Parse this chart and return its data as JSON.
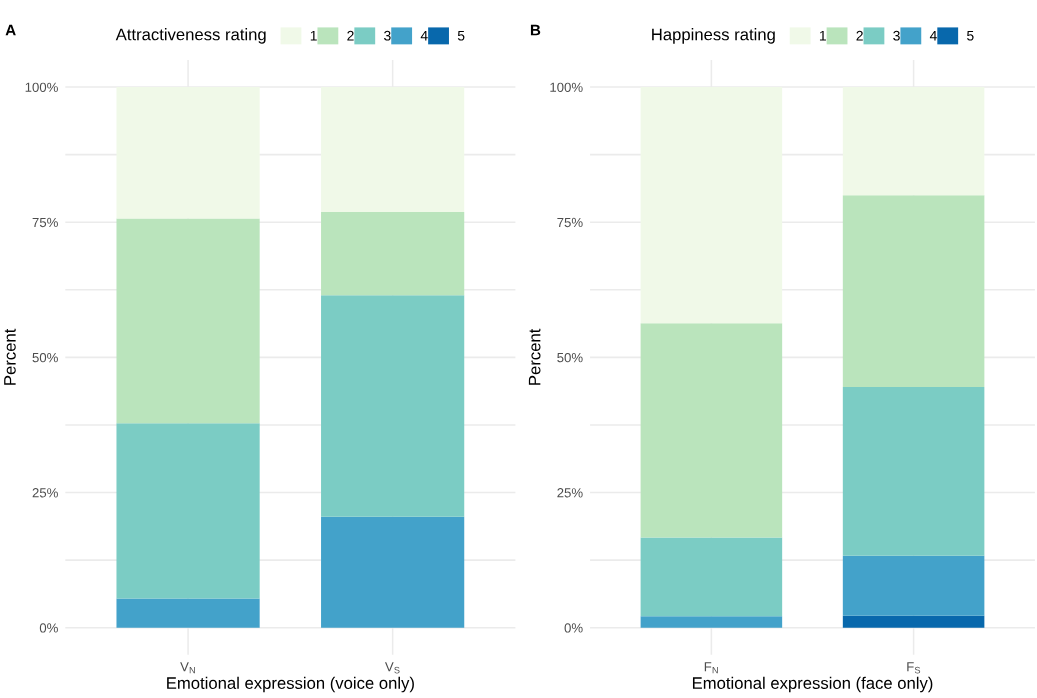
{
  "chart_data": [
    {
      "type": "bar",
      "stacked": true,
      "annotations": [
        "A"
      ],
      "legend_title": "Attractiveness rating",
      "legend": "top",
      "grid": true,
      "xlabel": "Emotional expression (voice only)",
      "ylabel": "Percent",
      "categories": [
        "V$_{N}$",
        "V$_{S}$"
      ],
      "ylim": [
        -5,
        105
      ],
      "yticks": [
        {
          "value": 0,
          "label": "0%"
        },
        {
          "value": 12.5,
          "label": null
        },
        {
          "value": 25,
          "label": "25%"
        },
        {
          "value": 37.5,
          "label": null
        },
        {
          "value": 50,
          "label": "50%"
        },
        {
          "value": 62.5,
          "label": null
        },
        {
          "value": 75,
          "label": "75%"
        },
        {
          "value": 87.5,
          "label": null
        },
        {
          "value": 100,
          "label": "100%"
        }
      ],
      "series": [
        {
          "name": "5",
          "color": "#0868ac",
          "values": [
            0,
            0
          ]
        },
        {
          "name": "4",
          "color": "#43a2ca",
          "values": [
            5.4,
            20.5
          ]
        },
        {
          "name": "3",
          "color": "#7bccc4",
          "values": [
            32.4,
            41.0
          ]
        },
        {
          "name": "2",
          "color": "#bae4bc",
          "values": [
            37.9,
            15.4
          ]
        },
        {
          "name": "1",
          "color": "#f0f9e8",
          "values": [
            24.3,
            23.1
          ]
        }
      ]
    },
    {
      "type": "bar",
      "stacked": true,
      "annotations": [
        "B"
      ],
      "legend_title": "Happiness rating",
      "legend": "top",
      "grid": true,
      "xlabel": "Emotional expression (face only)",
      "ylabel": "Percent",
      "categories": [
        "F$_{N}$",
        "F$_{S}$"
      ],
      "ylim": [
        -5,
        105
      ],
      "yticks": [
        {
          "value": 0,
          "label": "0%"
        },
        {
          "value": 12.5,
          "label": null
        },
        {
          "value": 25,
          "label": "25%"
        },
        {
          "value": 37.5,
          "label": null
        },
        {
          "value": 50,
          "label": "50%"
        },
        {
          "value": 62.5,
          "label": null
        },
        {
          "value": 75,
          "label": "75%"
        },
        {
          "value": 87.5,
          "label": null
        },
        {
          "value": 100,
          "label": "100%"
        }
      ],
      "series": [
        {
          "name": "5",
          "color": "#0868ac",
          "values": [
            0,
            2.2
          ]
        },
        {
          "name": "4",
          "color": "#43a2ca",
          "values": [
            2.1,
            11.1
          ]
        },
        {
          "name": "3",
          "color": "#7bccc4",
          "values": [
            14.6,
            31.2
          ]
        },
        {
          "name": "2",
          "color": "#bae4bc",
          "values": [
            39.6,
            35.5
          ]
        },
        {
          "name": "1",
          "color": "#f0f9e8",
          "values": [
            43.7,
            20.0
          ]
        }
      ]
    }
  ]
}
